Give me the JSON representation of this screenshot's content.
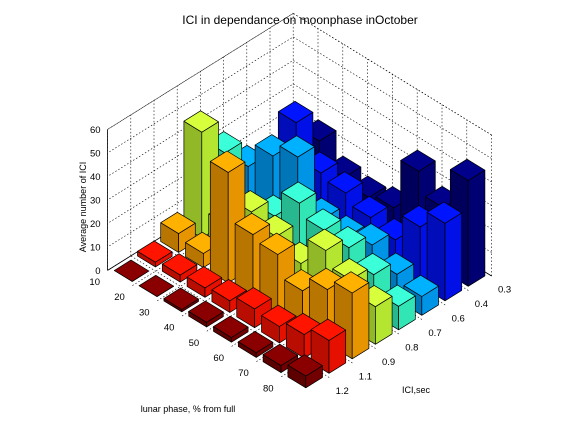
{
  "chart_data": {
    "type": "bar3d",
    "title": "ICI in dependance on moonphase inOctober",
    "xlabel": "lunar phase, % from full",
    "ylabel": "ICI,sec",
    "zlabel": "Average number of ICI",
    "zlim": [
      0,
      60
    ],
    "z_ticks": [
      0,
      10,
      20,
      30,
      40,
      50,
      60
    ],
    "grid": true,
    "colormap": "jet",
    "x_categories": [
      "80",
      "70",
      "60",
      "50",
      "40",
      "30",
      "20",
      "10"
    ],
    "y_categories": [
      "1.2",
      "1.1",
      "0.9",
      "0.8",
      "0.7",
      "0.6",
      "0.4",
      "0.3"
    ],
    "values": [
      [
        5,
        14,
        28,
        16,
        10,
        8,
        33,
        45
      ],
      [
        3,
        10,
        23,
        21,
        17,
        11,
        25,
        27
      ],
      [
        2,
        7,
        16,
        27,
        22,
        17,
        13,
        36
      ],
      [
        2,
        8,
        25,
        15,
        23,
        14,
        16,
        14
      ],
      [
        2,
        5,
        27,
        20,
        28,
        15,
        20,
        12
      ],
      [
        1,
        4,
        47,
        24,
        16,
        35,
        22,
        14
      ],
      [
        0,
        3,
        6,
        12,
        9,
        29,
        37,
        23
      ],
      [
        0,
        2,
        8,
        45,
        30,
        18,
        14,
        9
      ]
    ]
  }
}
